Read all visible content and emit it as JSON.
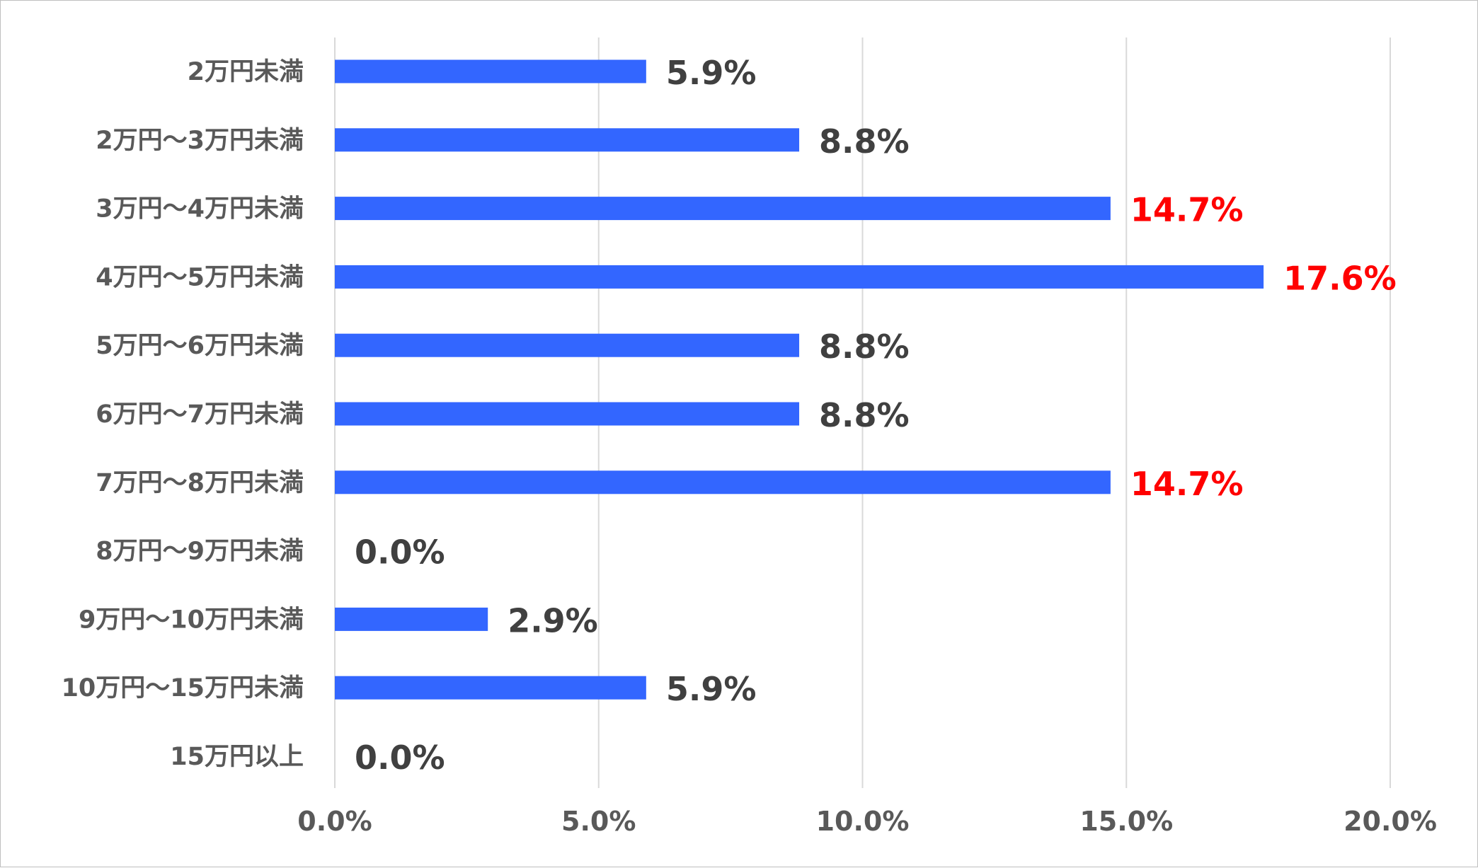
{
  "chart_data": {
    "type": "bar",
    "orientation": "horizontal",
    "categories": [
      "2万円未満",
      "2万円～3万円未満",
      "3万円～4万円未満",
      "4万円～5万円未満",
      "5万円～6万円未満",
      "6万円～7万円未満",
      "7万円～8万円未満",
      "8万円～9万円未満",
      "9万円～10万円未満",
      "10万円～15万円未満",
      "15万円以上"
    ],
    "values": [
      5.9,
      8.8,
      14.7,
      17.6,
      8.8,
      8.8,
      14.7,
      0.0,
      2.9,
      5.9,
      0.0
    ],
    "data_labels": [
      "5.9%",
      "8.8%",
      "14.7%",
      "17.6%",
      "8.8%",
      "8.8%",
      "14.7%",
      "0.0%",
      "2.9%",
      "5.9%",
      "0.0%"
    ],
    "highlighted": [
      false,
      false,
      true,
      true,
      false,
      false,
      true,
      false,
      false,
      false,
      false
    ],
    "x_ticks": [
      0,
      5,
      10,
      15,
      20
    ],
    "x_tick_labels": [
      "0.0%",
      "5.0%",
      "10.0%",
      "15.0%",
      "20.0%"
    ],
    "xlim": [
      0,
      20
    ],
    "grid": true,
    "title": "",
    "xlabel": "",
    "ylabel": "",
    "colors": {
      "bar": "#3366ff",
      "label_default": "#404040",
      "label_highlight": "#ff0000",
      "axis_text": "#595959",
      "grid": "#d9d9d9"
    }
  }
}
